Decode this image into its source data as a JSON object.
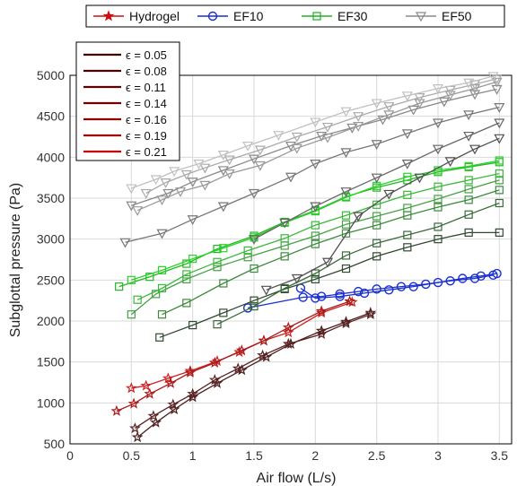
{
  "chart_data": {
    "type": "line",
    "xlabel": "Air flow (L/s)",
    "ylabel": "Subglottal pressure (Pa)",
    "xlim": [
      0,
      3.6
    ],
    "ylim": [
      500,
      5000
    ],
    "xticks": [
      "0",
      "0.5",
      "1",
      "1.5",
      "2",
      "2.5",
      "3",
      "3.5"
    ],
    "yticks": [
      "500",
      "1000",
      "1500",
      "2000",
      "2500",
      "3000",
      "3500",
      "4000",
      "4500",
      "5000"
    ],
    "grid": true,
    "legend_top": [
      {
        "label": "Hydrogel",
        "marker": "star",
        "color": "#cc1111"
      },
      {
        "label": "EF10",
        "marker": "circle",
        "color": "#1a2fd0"
      },
      {
        "label": "EF30",
        "marker": "square",
        "color": "#22b022"
      },
      {
        "label": "EF50",
        "marker": "triangle-down",
        "color": "#8a8a8a"
      }
    ],
    "legend_top_position": "top-center",
    "legend_epsilon_position": "top-left",
    "legend_epsilon": [
      {
        "label": "ϵ = 0.05",
        "color": "#3b0000"
      },
      {
        "label": "ϵ = 0.08",
        "color": "#4a0000"
      },
      {
        "label": "ϵ = 0.11",
        "color": "#5c0000"
      },
      {
        "label": "ϵ = 0.14",
        "color": "#720000"
      },
      {
        "label": "ϵ = 0.16",
        "color": "#8a0000"
      },
      {
        "label": "ϵ = 0.19",
        "color": "#a80000"
      },
      {
        "label": "ϵ = 0.21",
        "color": "#c80000"
      }
    ],
    "series": [
      {
        "group": "Hydrogel",
        "marker": "star",
        "color": "#4a1c1c",
        "x": [
          0.55,
          0.7,
          0.85,
          1.0,
          1.2,
          1.4,
          1.6,
          1.8,
          2.05,
          2.25,
          2.45
        ],
        "y": [
          580,
          760,
          920,
          1070,
          1240,
          1400,
          1560,
          1720,
          1880,
          1990,
          2100
        ]
      },
      {
        "group": "Hydrogel",
        "marker": "star",
        "color": "#5a2222",
        "x": [
          0.53,
          0.68,
          0.84,
          1.0,
          1.18,
          1.37,
          1.57,
          1.78,
          2.05,
          2.25,
          2.45
        ],
        "y": [
          690,
          840,
          980,
          1110,
          1280,
          1420,
          1580,
          1720,
          1840,
          1970,
          2080
        ]
      },
      {
        "group": "Hydrogel",
        "marker": "star",
        "color": "#cc2222",
        "x": [
          0.5,
          0.62,
          0.8,
          0.98,
          1.2,
          1.38,
          1.58,
          1.78,
          2.05,
          2.3
        ],
        "y": [
          1180,
          1210,
          1300,
          1390,
          1510,
          1620,
          1760,
          1860,
          2100,
          2230
        ]
      },
      {
        "group": "Hydrogel",
        "marker": "star",
        "color": "#aa1818",
        "x": [
          0.38,
          0.52,
          0.65,
          0.82,
          0.98,
          1.18,
          1.4,
          1.58,
          1.78,
          2.05,
          2.28
        ],
        "y": [
          900,
          990,
          1110,
          1240,
          1370,
          1490,
          1640,
          1760,
          1920,
          2120,
          2240
        ]
      },
      {
        "group": "EF10",
        "marker": "circle",
        "color": "#1a2fd0",
        "x": [
          1.45,
          1.9,
          2.05,
          2.2,
          2.35,
          2.5,
          2.7,
          2.9,
          3.1,
          3.3,
          3.45
        ],
        "y": [
          2160,
          2290,
          2300,
          2330,
          2360,
          2390,
          2420,
          2450,
          2490,
          2520,
          2560
        ]
      },
      {
        "group": "EF10",
        "marker": "circle",
        "color": "#1a2fd0",
        "x": [
          1.88,
          2.0,
          2.2,
          2.4,
          2.6,
          2.8,
          3.0,
          3.2,
          3.35,
          3.48
        ],
        "y": [
          2400,
          2280,
          2300,
          2340,
          2380,
          2420,
          2470,
          2520,
          2550,
          2580
        ]
      },
      {
        "group": "EF30",
        "marker": "square",
        "color": "#2f4a2f",
        "x": [
          0.73,
          1.0,
          1.25,
          1.5,
          1.75,
          2.0,
          2.25,
          2.5,
          2.75,
          3.0,
          3.25,
          3.5
        ],
        "y": [
          1800,
          1950,
          2100,
          2250,
          2390,
          2510,
          2640,
          2790,
          2900,
          3000,
          3080,
          3080
        ]
      },
      {
        "group": "EF30",
        "marker": "square",
        "color": "#3a6a3a",
        "x": [
          1.2,
          1.5,
          1.75,
          2.0,
          2.25,
          2.5,
          2.75,
          3.0,
          3.25,
          3.5
        ],
        "y": [
          1960,
          2180,
          2400,
          2580,
          2800,
          2950,
          3050,
          3150,
          3300,
          3440
        ]
      },
      {
        "group": "EF30",
        "marker": "square",
        "color": "#3c8a3c",
        "x": [
          0.75,
          0.95,
          1.25,
          1.5,
          1.75,
          2.0,
          2.25,
          2.5,
          2.75,
          3.0,
          3.25,
          3.5
        ],
        "y": [
          2080,
          2220,
          2460,
          2640,
          2790,
          2940,
          3070,
          3170,
          3290,
          3390,
          3480,
          3600
        ]
      },
      {
        "group": "EF30",
        "marker": "square",
        "color": "#46a046",
        "x": [
          0.5,
          0.7,
          0.95,
          1.2,
          1.45,
          1.75,
          2.0,
          2.25,
          2.5,
          2.75,
          3.0,
          3.25,
          3.5
        ],
        "y": [
          2080,
          2330,
          2510,
          2660,
          2780,
          2920,
          3040,
          3180,
          3280,
          3380,
          3490,
          3610,
          3720
        ]
      },
      {
        "group": "EF30",
        "marker": "square",
        "color": "#3ab83a",
        "x": [
          0.55,
          0.75,
          0.95,
          1.2,
          1.45,
          1.75,
          2.0,
          2.25,
          2.5,
          2.75,
          3.0,
          3.25,
          3.5
        ],
        "y": [
          2260,
          2400,
          2570,
          2720,
          2860,
          3010,
          3170,
          3290,
          3420,
          3540,
          3640,
          3720,
          3800
        ]
      },
      {
        "group": "EF30",
        "marker": "square",
        "color": "#22b822",
        "x": [
          0.4,
          0.65,
          0.95,
          1.2,
          1.5,
          1.75,
          2.0,
          2.25,
          2.5,
          2.75,
          3.0,
          3.25,
          3.5
        ],
        "y": [
          2420,
          2540,
          2700,
          2880,
          3040,
          3210,
          3350,
          3520,
          3630,
          3720,
          3820,
          3880,
          3940
        ]
      },
      {
        "group": "EF30",
        "marker": "square",
        "color": "#2ad22a",
        "x": [
          0.5,
          0.75,
          1.0,
          1.25,
          1.5,
          1.75,
          2.0,
          2.25,
          2.5,
          2.75,
          3.0,
          3.25,
          3.5
        ],
        "y": [
          2500,
          2620,
          2760,
          2890,
          3020,
          3200,
          3340,
          3510,
          3650,
          3760,
          3840,
          3890,
          3960
        ]
      },
      {
        "group": "EF50",
        "marker": "triangle-down",
        "color": "#505050",
        "x": [
          1.6,
          1.85,
          2.1,
          2.35,
          2.6,
          2.85,
          3.1,
          3.3,
          3.5
        ],
        "y": [
          2380,
          2520,
          2720,
          3280,
          3550,
          3750,
          3950,
          4100,
          4230
        ]
      },
      {
        "group": "EF50",
        "marker": "triangle-down",
        "color": "#666666",
        "x": [
          1.5,
          1.75,
          2.0,
          2.25,
          2.5,
          2.75,
          3.0,
          3.25,
          3.5
        ],
        "y": [
          3000,
          3200,
          3400,
          3580,
          3750,
          3920,
          4100,
          4260,
          4420
        ]
      },
      {
        "group": "EF50",
        "marker": "triangle-down",
        "color": "#777777",
        "x": [
          0.45,
          0.75,
          1.0,
          1.25,
          1.5,
          1.8,
          2.0,
          2.25,
          2.5,
          2.75,
          3.0,
          3.25,
          3.5
        ],
        "y": [
          2960,
          3070,
          3240,
          3400,
          3560,
          3760,
          3920,
          4060,
          4160,
          4290,
          4420,
          4520,
          4610
        ]
      },
      {
        "group": "EF50",
        "marker": "triangle-down",
        "color": "#888888",
        "x": [
          0.5,
          0.8,
          1.0,
          1.25,
          1.5,
          1.8,
          2.05,
          2.3,
          2.55,
          2.8,
          3.05,
          3.3,
          3.48
        ],
        "y": [
          3410,
          3560,
          3700,
          3840,
          3980,
          4140,
          4260,
          4360,
          4460,
          4580,
          4680,
          4770,
          4830
        ]
      },
      {
        "group": "EF50",
        "marker": "triangle-down",
        "color": "#999999",
        "x": [
          0.55,
          0.75,
          0.9,
          1.1,
          1.3,
          1.55,
          1.85,
          2.1,
          2.35,
          2.6,
          2.85,
          3.1,
          3.3,
          3.48
        ],
        "y": [
          3350,
          3480,
          3580,
          3660,
          3800,
          3900,
          4110,
          4240,
          4380,
          4520,
          4660,
          4760,
          4840,
          4920
        ]
      },
      {
        "group": "EF50",
        "marker": "triangle-down",
        "color": "#aaaaaa",
        "x": [
          0.62,
          0.78,
          0.95,
          1.1,
          1.3,
          1.55,
          1.85,
          2.1,
          2.35,
          2.6,
          2.85,
          3.1,
          3.3,
          3.48
        ],
        "y": [
          3560,
          3690,
          3790,
          3870,
          3970,
          4090,
          4250,
          4370,
          4500,
          4620,
          4730,
          4820,
          4890,
          4960
        ]
      },
      {
        "group": "EF50",
        "marker": "triangle-down",
        "color": "#c0c0c0",
        "x": [
          0.5,
          0.7,
          0.85,
          1.05,
          1.25,
          1.45,
          1.7,
          2.0,
          2.25,
          2.5,
          2.75,
          3.0,
          3.25,
          3.45
        ],
        "y": [
          3620,
          3730,
          3830,
          3920,
          4030,
          4140,
          4270,
          4430,
          4560,
          4660,
          4750,
          4840,
          4910,
          4990
        ]
      }
    ]
  }
}
